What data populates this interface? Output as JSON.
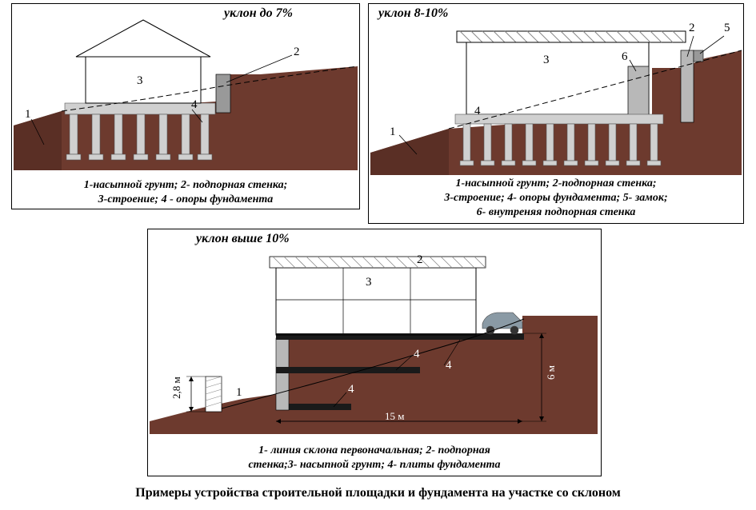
{
  "colors": {
    "soil": "#6d3a2e",
    "soil_dark": "#5a2f25",
    "panel_border": "#000000",
    "leader_line": "#000000",
    "dash": "#000000",
    "concrete": "#b8b8b8",
    "concrete_light": "#d0d0d0",
    "wall_hatch": "#999999",
    "car_body": "#8a9aa5"
  },
  "panel1": {
    "title": "уклон до 7%",
    "labels": {
      "n1": "1",
      "n2": "2",
      "n3": "3",
      "n4": "4"
    },
    "legend": "1-насыпной грунт; 2- подпорная стенка;\n3-строение; 4 - опоры фундамента"
  },
  "panel2": {
    "title": "уклон 8-10%",
    "labels": {
      "n1": "1",
      "n2": "2",
      "n3": "3",
      "n4": "4",
      "n5": "5",
      "n6": "6"
    },
    "legend": "1-насыпной грунт; 2-подпорная стенка;\n3-строение; 4- опоры фундамента; 5- замок;\n6- внутреняя подпорная стенка"
  },
  "panel3": {
    "title": "уклон выше 10%",
    "labels": {
      "n1": "1",
      "n2": "2",
      "n3": "3",
      "n4a": "4",
      "n4b": "4",
      "n4c": "4"
    },
    "dims": {
      "h1": "2,8 м",
      "h2": "6 м",
      "w": "15 м"
    },
    "legend": "1- линия склона первоначальная; 2- подпорная\nстенка;3- насыпной грунт; 4- плиты фундамента"
  },
  "main_title": "Примеры устройства строительной площадки и фундамента на участке со склоном"
}
